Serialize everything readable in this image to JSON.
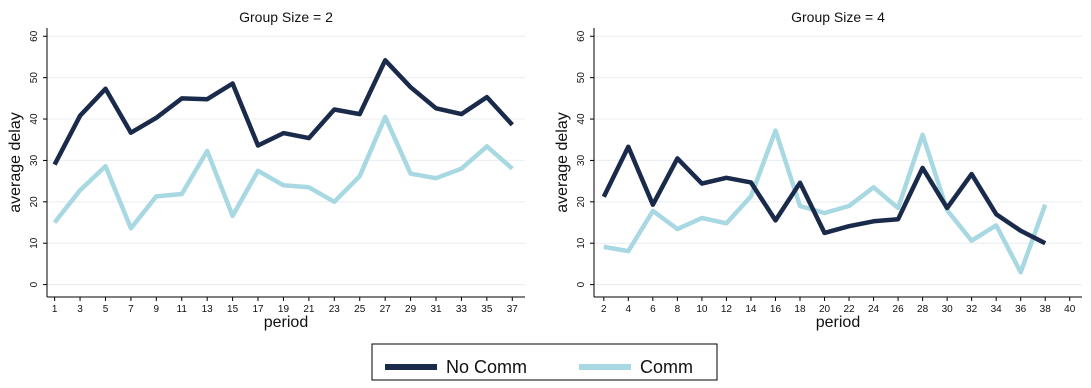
{
  "colors": {
    "no_comm": "#1a2a4a",
    "comm": "#a8d8e2",
    "grid": "#e8ecf0",
    "axis": "#000000"
  },
  "legend": {
    "items": [
      {
        "label": "No Comm",
        "color": "#1a2a4a"
      },
      {
        "label": "Comm",
        "color": "#a8d8e2"
      }
    ]
  },
  "chart_data": [
    {
      "type": "line",
      "title": "Group Size = 2",
      "xlabel": "period",
      "ylabel": "average delay",
      "xlim": [
        0.4,
        38
      ],
      "ylim": [
        -3,
        62
      ],
      "xticks": [
        1,
        3,
        5,
        7,
        9,
        11,
        13,
        15,
        17,
        19,
        21,
        23,
        25,
        27,
        29,
        31,
        33,
        35,
        37
      ],
      "yticks": [
        0,
        10,
        20,
        30,
        40,
        50,
        60
      ],
      "grid": true,
      "x": [
        1,
        3,
        5,
        7,
        9,
        11,
        13,
        15,
        17,
        19,
        21,
        23,
        25,
        27,
        29,
        31,
        33,
        35,
        37
      ],
      "series": [
        {
          "name": "No Comm",
          "values": [
            29,
            40.8,
            47.3,
            36.7,
            40.3,
            45,
            44.8,
            48.6,
            33.6,
            36.6,
            35.4,
            42.3,
            41.2,
            54.2,
            47.7,
            42.6,
            41.2,
            45.3,
            38.6
          ]
        },
        {
          "name": "Comm",
          "values": [
            15,
            22.8,
            28.6,
            13.6,
            21.3,
            21.9,
            32.3,
            16.6,
            27.5,
            24,
            23.5,
            20,
            26.2,
            40.5,
            26.8,
            25.7,
            28,
            33.4,
            28
          ]
        }
      ]
    },
    {
      "type": "line",
      "title": "Group Size = 4",
      "xlabel": "period",
      "ylabel": "average delay",
      "xlim": [
        1.2,
        41
      ],
      "ylim": [
        -3,
        62
      ],
      "xticks": [
        2,
        4,
        6,
        8,
        10,
        12,
        14,
        16,
        18,
        20,
        22,
        24,
        26,
        28,
        30,
        32,
        34,
        36,
        38,
        40
      ],
      "yticks": [
        0,
        10,
        20,
        30,
        40,
        50,
        60
      ],
      "grid": true,
      "x": [
        2,
        4,
        6,
        8,
        10,
        12,
        14,
        16,
        18,
        20,
        22,
        24,
        26,
        28,
        30,
        32,
        34,
        36,
        38
      ],
      "series": [
        {
          "name": "No Comm",
          "values": [
            21.2,
            33.3,
            19.3,
            30.5,
            24.4,
            25.8,
            24.7,
            15.5,
            24.6,
            12.5,
            14.1,
            15.3,
            15.8,
            28.2,
            18.5,
            26.7,
            17,
            13,
            10
          ]
        },
        {
          "name": "Comm",
          "values": [
            9.1,
            8.1,
            17.8,
            13.4,
            16.1,
            14.8,
            21.3,
            37.2,
            19,
            17.3,
            19,
            23.5,
            18.5,
            36.2,
            18,
            10.6,
            14.3,
            3,
            19.3
          ]
        }
      ]
    }
  ]
}
